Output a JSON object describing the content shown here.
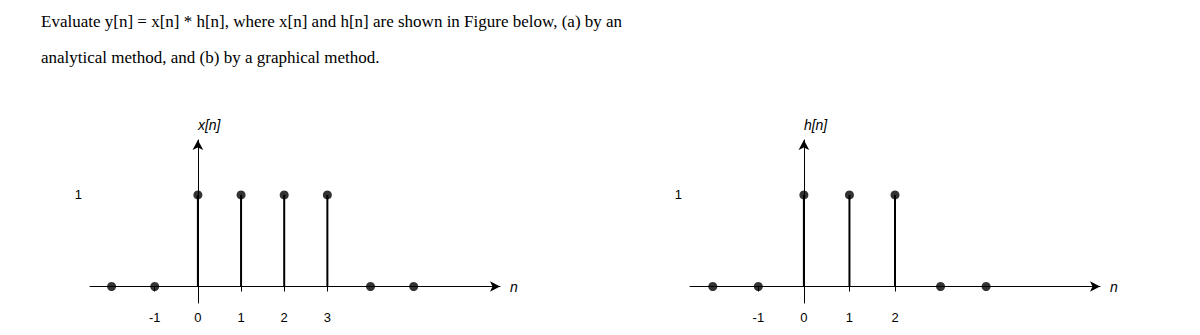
{
  "chart_data": [
    {
      "type": "stem",
      "title": "Evaluate y[n] = x[n] * h[n], where x[n] and h[n] are shown in Figure below, (a) by an",
      "subtitle": "analytical method, and (b) by a graphical method.",
      "ylabel": "x[n]",
      "xlabel": "n",
      "x": [
        0,
        1,
        2,
        3,
        -1,
        -2,
        4,
        5
      ],
      "values": [
        1,
        1,
        1,
        1,
        0,
        0,
        0,
        0
      ],
      "color": "#000000",
      "xlim": [
        -2.5,
        7.0
      ],
      "ylim": [
        -0.18,
        1.6
      ],
      "xticks": [
        -1,
        0,
        1,
        2,
        3
      ],
      "yticks": [
        1
      ],
      "grid": false
    },
    {
      "type": "stem",
      "ylabel": "h[n]",
      "xlabel": "n",
      "x": [
        0,
        1,
        2,
        -1,
        -2,
        3,
        4
      ],
      "values": [
        1,
        1,
        1,
        0,
        0,
        0,
        0
      ],
      "color": "#000000",
      "xlim": [
        -2.5,
        6.5
      ],
      "ylim": [
        -0.18,
        1.6
      ],
      "xticks": [
        -1,
        0,
        1,
        2
      ],
      "yticks": [
        1
      ],
      "grid": false
    }
  ]
}
